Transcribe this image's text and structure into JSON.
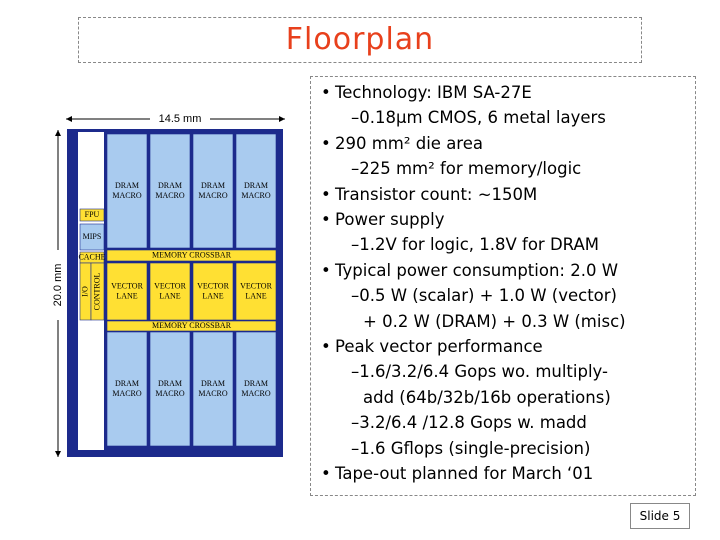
{
  "title": "Floorplan",
  "floorplan": {
    "width_label": "14.5 mm",
    "height_label": "20.0 mm",
    "top_macros": [
      "DRAM MACRO",
      "DRAM MACRO",
      "DRAM MACRO",
      "DRAM MACRO"
    ],
    "bottom_macros": [
      "DRAM MACRO",
      "DRAM MACRO",
      "DRAM MACRO",
      "DRAM MACRO"
    ],
    "fpu": "FPU",
    "mips": "MIPS",
    "cache": "CACHE",
    "io": "I/O",
    "control": "CONTROL",
    "crossbar_top": "MEMORY CROSSBAR",
    "crossbar_bottom": "MEMORY CROSSBAR",
    "lanes": [
      "VECTOR LANE",
      "VECTOR LANE",
      "VECTOR LANE",
      "VECTOR LANE"
    ]
  },
  "bullets": [
    {
      "text": "Technology: IBM SA-27E",
      "subs": [
        [
          "–0.18μm CMOS, 6 metal layers"
        ]
      ]
    },
    {
      "text": "290 mm² die area",
      "subs": [
        [
          "–225 mm² for memory/logic"
        ]
      ]
    },
    {
      "text": "Transistor count: ~150M",
      "subs": []
    },
    {
      "text": "Power supply",
      "subs": [
        [
          "–1.2V for logic, 1.8V for DRAM"
        ]
      ]
    },
    {
      "text": "Typical power consumption: 2.0 W",
      "subs": [
        [
          "–0.5 W (scalar) + 1.0 W (vector)",
          "+ 0.2 W (DRAM) + 0.3 W (misc)"
        ]
      ]
    },
    {
      "text": "Peak vector performance",
      "subs": [
        [
          "–1.6/3.2/6.4 Gops wo. multiply-",
          "add (64b/32b/16b operations)"
        ],
        [
          "–3.2/6.4 /12.8 Gops w. madd"
        ],
        [
          "–1.6 Gflops (single-precision)"
        ]
      ]
    },
    {
      "text": "Tape-out planned for March ‘01",
      "subs": []
    }
  ],
  "slide_number": "Slide 5"
}
